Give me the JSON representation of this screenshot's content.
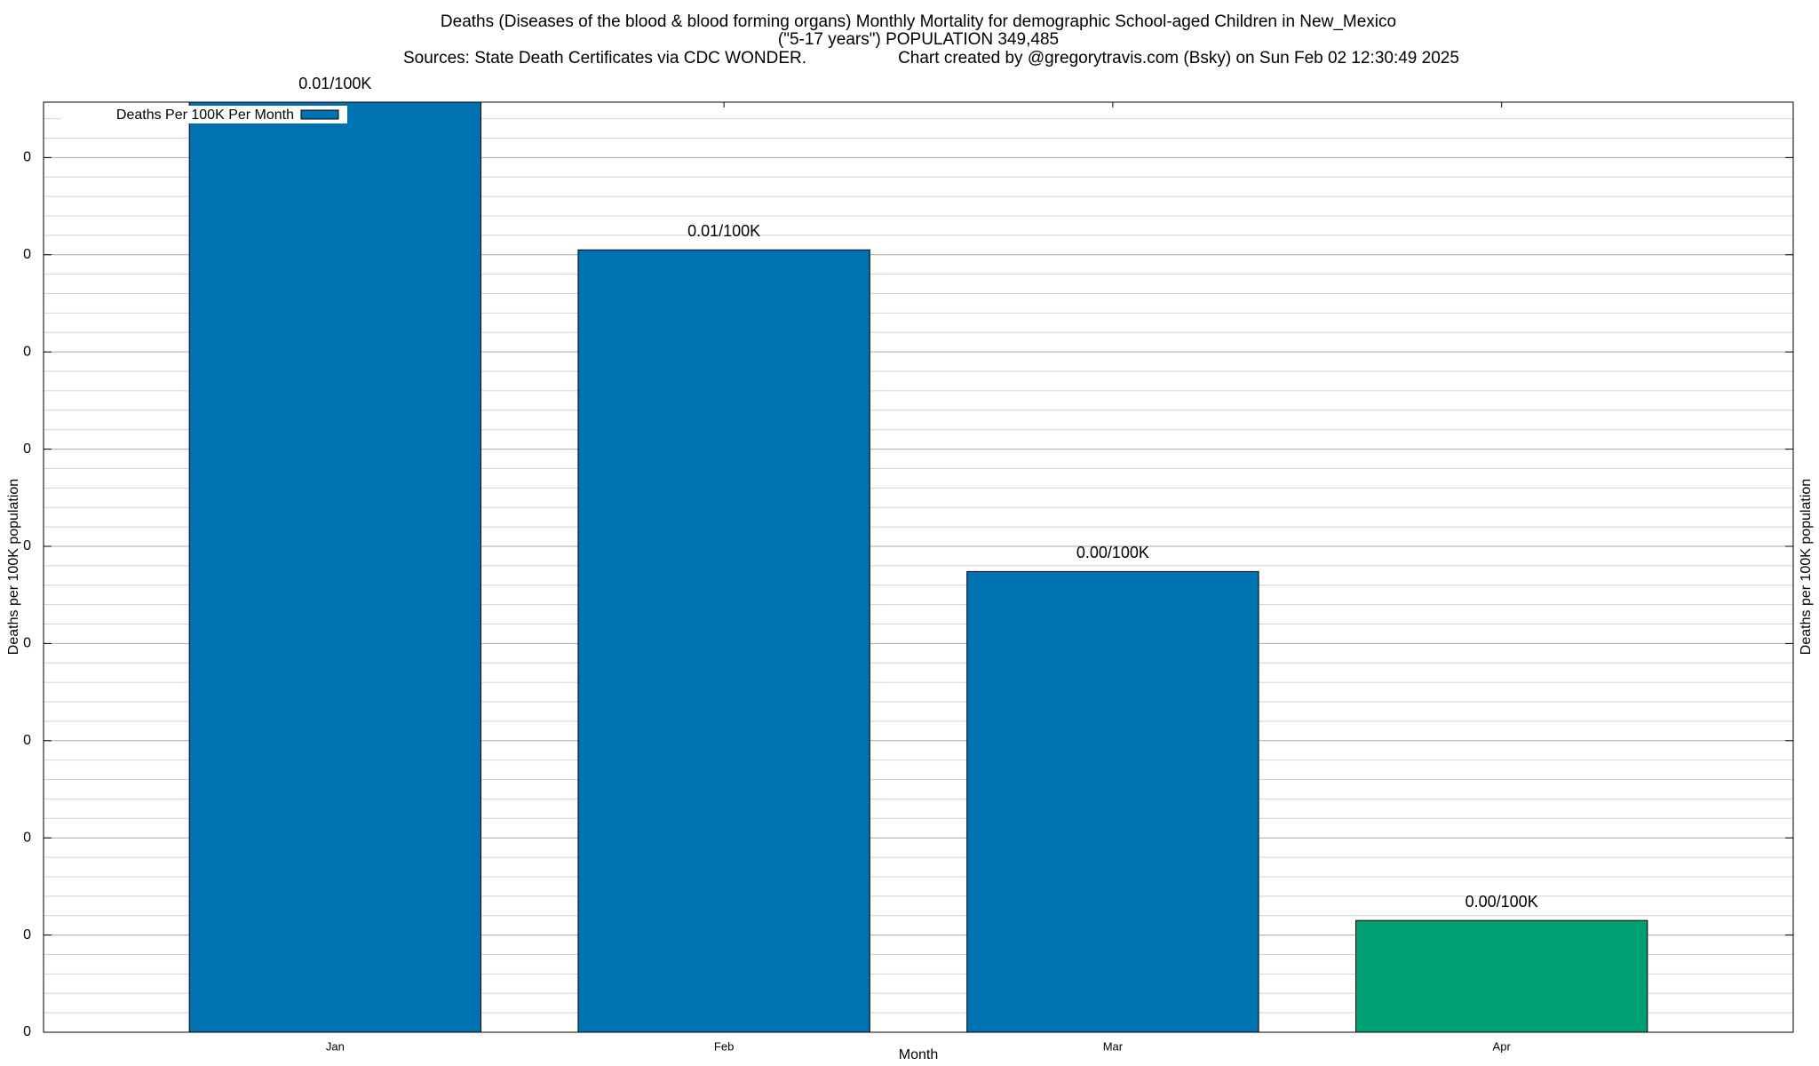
{
  "chart_data": {
    "type": "bar",
    "title": "Deaths (Diseases of the blood & blood forming organs) Monthly Mortality for demographic School-aged Children in New_Mexico",
    "subtitle": "(\"5-17 years\") POPULATION 349,485",
    "source": "Sources: State Death Certificates via CDC WONDER.",
    "credit": "Chart created by @gregorytravis.com (Bsky) on Sun Feb 02 12:30:49 2025",
    "x_label": "Month",
    "y_label": "Deaths per 100K population",
    "y2_label": "Deaths per 100K population",
    "categories": [
      "Jan",
      "Feb",
      "Mar",
      "Apr"
    ],
    "series": [
      {
        "name": "Deaths Per 100K Per Month",
        "color": "#0072b2",
        "values": [
          0.00957,
          0.00805,
          0.00474,
          0.00115
        ],
        "value_labels": [
          "0.01/100K",
          "0.01/100K",
          "0.00/100K",
          "0.00/100K"
        ],
        "colors": [
          "#0072b2",
          "#0072b2",
          "#0072b2",
          "#009e73"
        ]
      }
    ],
    "ylim": [
      0,
      0.00957
    ],
    "yticks": [
      0,
      {
        "value": 0.001,
        "label": "0"
      },
      {
        "value": 0.002,
        "label": "0"
      },
      {
        "value": 0.003,
        "label": "0"
      },
      {
        "value": 0.004,
        "label": "0"
      },
      {
        "value": 0.005,
        "label": "0"
      },
      {
        "value": 0.006,
        "label": "0"
      },
      {
        "value": 0.007,
        "label": "0"
      },
      {
        "value": 0.008,
        "label": "0"
      },
      {
        "value": 0.009,
        "label": "0"
      }
    ],
    "grid": true,
    "legend": "top-left"
  }
}
